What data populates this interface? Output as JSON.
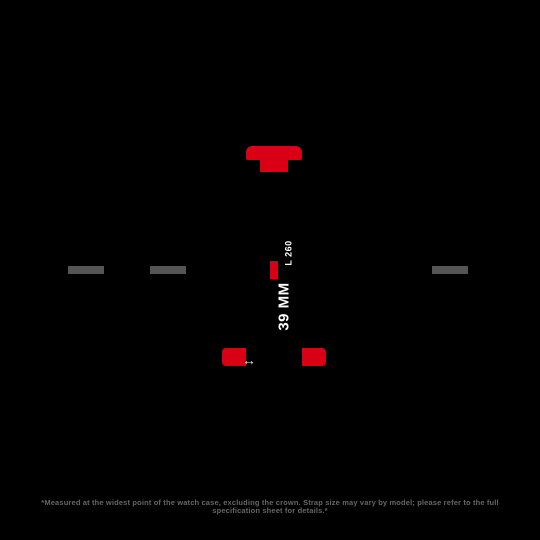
{
  "diagram": {
    "background_color": "#000000",
    "accent_color": "#D90016",
    "mark_color": "#555555",
    "text_color": "#FFFFFF",
    "footnote_color": "#666666",
    "measurement": "39 MM",
    "length_code": "L 260",
    "arrow_glyph": "↔",
    "footnote": "*Measured at the widest point of the watch case, excluding the crown. Strap size may vary by model; please refer to the full specification sheet for details.*",
    "meas_fontsize": 15,
    "code_fontsize": 9,
    "footnote_fontsize": 7.5
  }
}
